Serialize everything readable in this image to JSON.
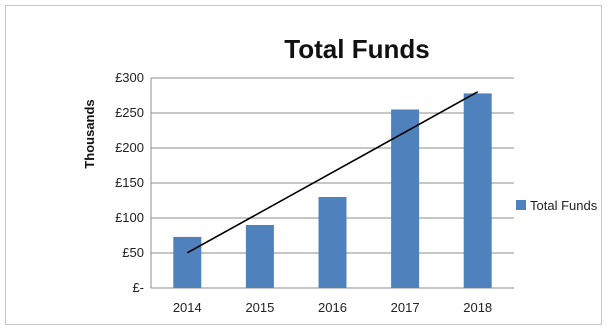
{
  "chart_data": {
    "type": "bar",
    "title": "Total Funds",
    "xlabel": "",
    "ylabel": "Thousands",
    "categories": [
      "2014",
      "2015",
      "2016",
      "2017",
      "2018"
    ],
    "series": [
      {
        "name": "Total Funds",
        "values": [
          73,
          90,
          130,
          255,
          278
        ],
        "color": "#4f81bd"
      }
    ],
    "trendline": {
      "type": "linear",
      "color": "#000000"
    },
    "ylim": [
      0,
      300
    ],
    "yticks": [
      0,
      50,
      100,
      150,
      200,
      250,
      300
    ],
    "ytick_labels": [
      "£-",
      "£50",
      "£100",
      "£150",
      "£200",
      "£250",
      "£300"
    ],
    "grid": true,
    "legend": "right"
  }
}
